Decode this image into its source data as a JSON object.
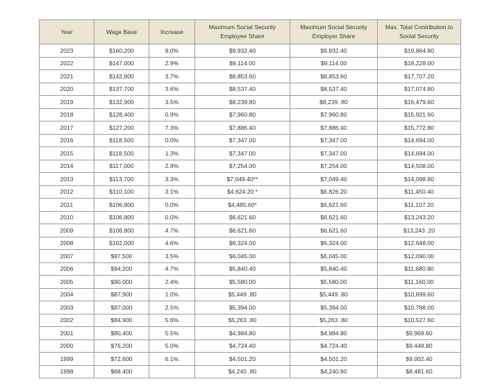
{
  "table": {
    "header": [
      "Year",
      "Wage Base",
      "Increase",
      "Maximum Social Security Employee Share",
      "Maximum Social Security Employer Share",
      "Max. Total Contribution to Social Security"
    ],
    "rows": [
      [
        "2023",
        "$160,200",
        "9.0%",
        "$9,932.40",
        "$9,932.40",
        "$19,864.80"
      ],
      [
        "2022",
        "$147,000",
        "2.9%",
        "$9,114.00",
        "$9,114.00",
        "$18,228.00"
      ],
      [
        "2021",
        "$142,800",
        "3.7%",
        "$8,853.60",
        "$8,853.60",
        "$17,707.20"
      ],
      [
        "2020",
        "$137,700",
        "3.6%",
        "$8,537.40",
        "$8,537.40",
        "$17,074.80"
      ],
      [
        "2019",
        "$132,900",
        "3.5%",
        "$8,239.80",
        "$8,239 .80",
        "$16,479.60"
      ],
      [
        "2018",
        "$128,400",
        "0.9%",
        "$7,960.80",
        "$7,960.80",
        "$15,921.60"
      ],
      [
        "2017",
        "$127,200",
        "7.3%",
        "$7,886.40",
        "$7,886.40",
        "$15,772.80"
      ],
      [
        "2016",
        "$118,500",
        "0.0%",
        "$7,347.00",
        "$7,347.00",
        "$14,694.00"
      ],
      [
        "2015",
        "$118,500",
        "1.3%",
        "$7,347.00",
        "$7,347.00",
        "$14,694.00"
      ],
      [
        "2014",
        "$117,000",
        "2.9%",
        "$7,254.00",
        "$7,254.00",
        "$14,508.00"
      ],
      [
        "2013",
        "$113,700",
        "3.3%",
        "$7,049.40**",
        "$7,049.40",
        "$14,098.80"
      ],
      [
        "2012",
        "$110,100",
        "3.1%",
        "$4,624.20 *",
        "$6,826.20",
        "$11,450.40"
      ],
      [
        "2011",
        "$106,800",
        "0.0%",
        "$4,485.60*",
        "$6,621.60",
        "$11,107.20"
      ],
      [
        "2010",
        "$106,800",
        "0.0%",
        "$6,621.60",
        "$6,621.60",
        "$13,243.20"
      ],
      [
        "2009",
        "$106,800",
        "4.7%",
        "$6,621.60",
        "$6,621.60",
        "$13,243 .20"
      ],
      [
        "2008",
        "$102,000",
        "4.6%",
        "$6,324.00",
        "$6,324.00",
        "$12,648.00"
      ],
      [
        "2007",
        "$97,500",
        "3.5%",
        "$6,045.00",
        "$6,045.00",
        "$12,090.00"
      ],
      [
        "2006",
        "$94,200",
        "4.7%",
        "$5,840.40",
        "$5,840.40",
        "$11,680.80"
      ],
      [
        "2005",
        "$90,000",
        "2.4%",
        "$5,580.00",
        "$5,580.00",
        "$11,160.00"
      ],
      [
        "2004",
        "$87,900",
        "1.0%",
        "$5,449 .80",
        "$5,449 .80",
        "$10,899.60"
      ],
      [
        "2003",
        "$87,000",
        "2.5%",
        "$5,394.00",
        "$5,394.00",
        "$10,788.00"
      ],
      [
        "2002",
        "$84,900",
        "5.6%",
        "$5,263 .80",
        "$5,263 .80",
        "$10,527.60"
      ],
      [
        "2001",
        "$80,400",
        "5.5%",
        "$4,984.80",
        "$4,984.80",
        "$9,969.60"
      ],
      [
        "2000",
        "$76,200",
        "5.0%",
        "$4,724.40",
        "$4,724.40",
        "$9,448.80"
      ],
      [
        "1999",
        "$72,600",
        "6.1%",
        "$4,501.20",
        "$4,501.20",
        "$9,002.40"
      ],
      [
        "1998",
        "$68,400",
        null,
        "$4,240 .80",
        "$4,240.80",
        "$8,481.60"
      ]
    ]
  }
}
